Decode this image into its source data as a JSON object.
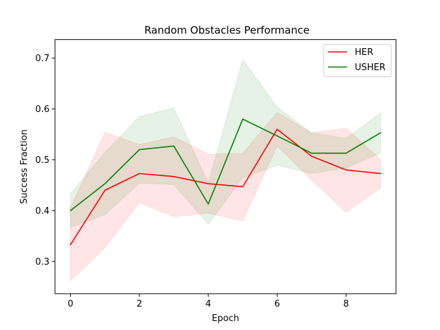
{
  "chart_data": {
    "type": "line",
    "title": "Random Obstacles Performance",
    "xlabel": "Epoch",
    "ylabel": "Success Fraction",
    "xlim": [
      -0.45,
      9.45
    ],
    "ylim": [
      0.2365,
      0.7365
    ],
    "xticks": [
      0,
      2,
      4,
      6,
      8
    ],
    "yticks": [
      0.3,
      0.4,
      0.5,
      0.6,
      0.7
    ],
    "grid": false,
    "legend_position": "top-right",
    "x": [
      0,
      1,
      2,
      3,
      4,
      5,
      6,
      7,
      8,
      9
    ],
    "series": [
      {
        "name": "HER",
        "color": "#ff0000",
        "band_color": "#ff0000",
        "values": [
          0.333,
          0.44,
          0.473,
          0.467,
          0.453,
          0.447,
          0.56,
          0.507,
          0.48,
          0.473
        ],
        "lower": [
          0.262,
          0.327,
          0.416,
          0.388,
          0.395,
          0.38,
          0.527,
          0.46,
          0.397,
          0.445
        ],
        "upper": [
          0.405,
          0.554,
          0.53,
          0.545,
          0.511,
          0.513,
          0.593,
          0.553,
          0.562,
          0.501
        ]
      },
      {
        "name": "USHER",
        "color": "#008000",
        "band_color": "#008000",
        "values": [
          0.4,
          0.453,
          0.52,
          0.527,
          0.413,
          0.58,
          0.547,
          0.513,
          0.513,
          0.553
        ],
        "lower": [
          0.367,
          0.392,
          0.454,
          0.451,
          0.373,
          0.465,
          0.489,
          0.473,
          0.484,
          0.513
        ],
        "upper": [
          0.433,
          0.515,
          0.585,
          0.602,
          0.454,
          0.697,
          0.604,
          0.553,
          0.542,
          0.592
        ]
      }
    ]
  }
}
